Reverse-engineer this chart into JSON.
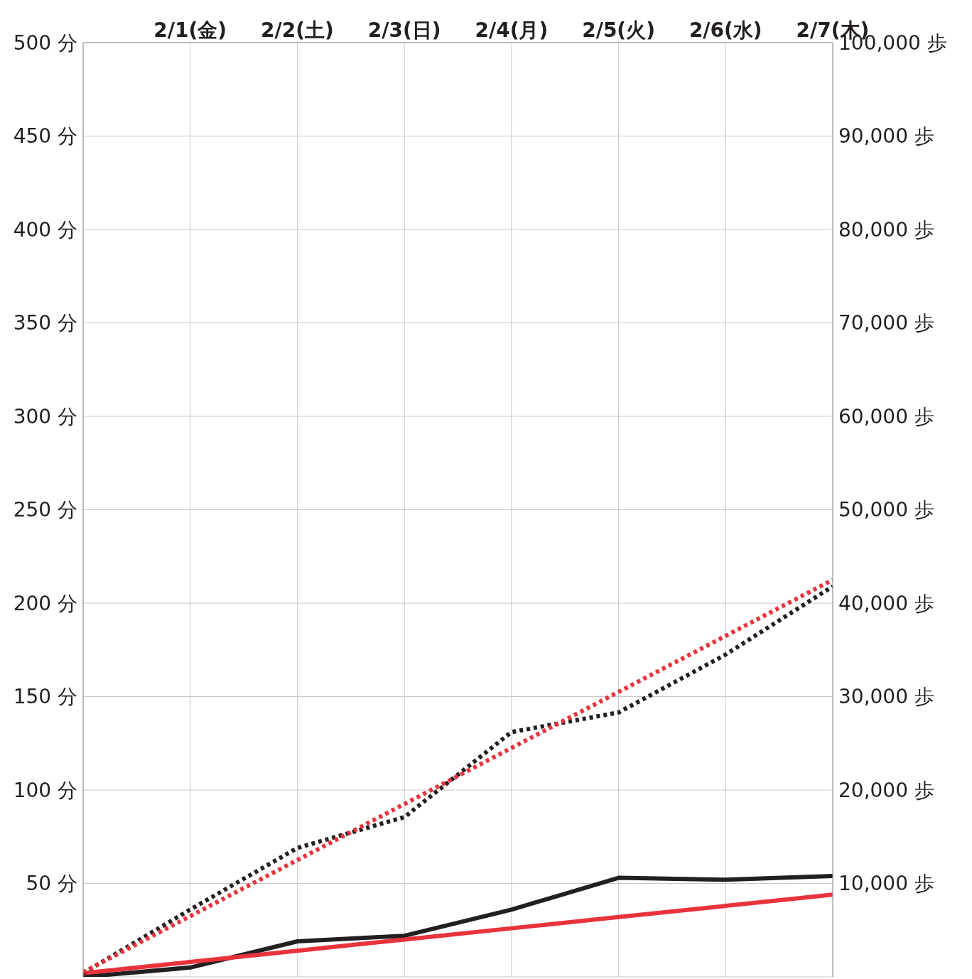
{
  "chart_data": {
    "type": "line",
    "categories": [
      null,
      "2/1(金)",
      "2/2(土)",
      "2/3(日)",
      "2/4(月)",
      "2/5(火)",
      "2/6(水)",
      "2/7(木)"
    ],
    "ylim": [
      0,
      500
    ],
    "yticks": [
      {
        "value": 50,
        "label": "50 分"
      },
      {
        "value": 100,
        "label": "100 分"
      },
      {
        "value": 150,
        "label": "150 分"
      },
      {
        "value": 200,
        "label": "200 分"
      },
      {
        "value": 250,
        "label": "250 分"
      },
      {
        "value": 300,
        "label": "300 分"
      },
      {
        "value": 350,
        "label": "350 分"
      },
      {
        "value": 400,
        "label": "400 分"
      },
      {
        "value": 450,
        "label": "450 分"
      },
      {
        "value": 500,
        "label": "500 分"
      }
    ],
    "y2lim": [
      0,
      100000
    ],
    "y2ticks": [
      {
        "value": 10000,
        "label": "10,000 歩"
      },
      {
        "value": 20000,
        "label": "20,000 歩"
      },
      {
        "value": 30000,
        "label": "30,000 歩"
      },
      {
        "value": 40000,
        "label": "40,000 歩"
      },
      {
        "value": 50000,
        "label": "50,000 歩"
      },
      {
        "value": 60000,
        "label": "60,000 歩"
      },
      {
        "value": 70000,
        "label": "70,000 歩"
      },
      {
        "value": 80000,
        "label": "80,000 歩"
      },
      {
        "value": 90000,
        "label": "90,000 歩"
      },
      {
        "value": 100000,
        "label": "100,000 歩"
      }
    ],
    "grid": true,
    "marker": "none",
    "series": [
      {
        "color": "#231f20",
        "line_style": "solid",
        "values": [
          0,
          5,
          19,
          22,
          36,
          53,
          52,
          54
        ]
      },
      {
        "color": "#e8333c",
        "line_style": "solid",
        "values": [
          2,
          8,
          14,
          20,
          26,
          32,
          38,
          44
        ]
      },
      {
        "color": "#231f20",
        "line_style": "dotted",
        "axis": "y2",
        "values": [
          400,
          7200,
          13800,
          17100,
          26200,
          28300,
          34500,
          41800
        ]
      },
      {
        "color": "#e8333c",
        "line_style": "dotted",
        "axis": "y2",
        "values": [
          500,
          6500,
          12500,
          18500,
          24500,
          30500,
          36500,
          42500
        ]
      }
    ]
  }
}
